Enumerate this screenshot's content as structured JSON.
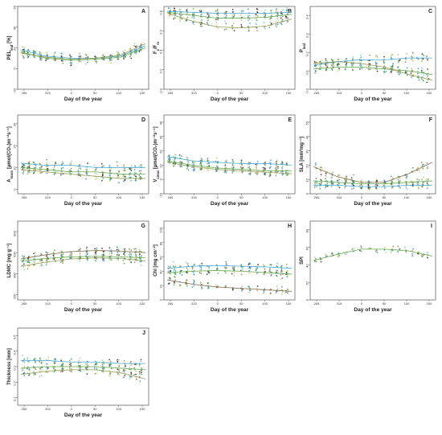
{
  "figure": {
    "shared_xlabel": "Day of the year",
    "colors": {
      "dark_brown": "#3b2414",
      "olive": "#8d8a3c",
      "khaki": "#c8bd78",
      "green": "#49a34b",
      "light_green": "#a8cf6b",
      "teal": "#2f9a90",
      "blue": "#3a86c8",
      "light_blue": "#6fc7e3",
      "fit_blue": "#4da9d8",
      "fit_green": "#6aaa50",
      "fit_olive": "#9a9a5a",
      "fit_brown": "#8b6a4e"
    }
  },
  "chart_data": [
    {
      "id": "A",
      "type": "scatter",
      "letter": "A",
      "ylabel": "PEL",
      "ylabel_sub": "leaf",
      "ylabel_unit": " [%]",
      "xlabel": "Day of the year",
      "xticks": [
        "265",
        "315",
        "0",
        "50",
        "100",
        "150"
      ],
      "yticks": [
        "-20",
        "0",
        "20",
        "40",
        "60"
      ],
      "ylim": [
        -20,
        60
      ],
      "fits": [
        {
          "name": "fit-blue",
          "color": "#4da9d8",
          "y": [
            18,
            12,
            10,
            10,
            12,
            22
          ]
        },
        {
          "name": "fit-green",
          "color": "#6aaa50",
          "y": [
            16,
            10,
            8,
            9,
            11,
            20
          ]
        },
        {
          "name": "fit-olive",
          "color": "#9a9a5a",
          "y": [
            15,
            11,
            9,
            10,
            13,
            24
          ]
        }
      ]
    },
    {
      "id": "B",
      "type": "scatter",
      "letter": "B",
      "ylabel": "F",
      "ylabel_sub": "v",
      "ylabel_tail": "/F",
      "ylabel_sub2": "m",
      "xlabel": "Day of the year",
      "xticks": [
        "265",
        "315",
        "0",
        "50",
        "100",
        "150"
      ],
      "yticks": [
        "0.0",
        "0.2",
        "0.4",
        "0.6",
        "0.8"
      ],
      "ylim": [
        0,
        0.85
      ],
      "fits": [
        {
          "name": "fit-blue",
          "color": "#4da9d8",
          "y": [
            0.8,
            0.79,
            0.78,
            0.78,
            0.78,
            0.79
          ]
        },
        {
          "name": "fit-green",
          "color": "#6aaa50",
          "y": [
            0.79,
            0.76,
            0.73,
            0.73,
            0.74,
            0.77
          ]
        },
        {
          "name": "fit-olive",
          "color": "#9a9a5a",
          "y": [
            0.78,
            0.7,
            0.64,
            0.63,
            0.65,
            0.72
          ]
        }
      ]
    },
    {
      "id": "C",
      "type": "scatter",
      "letter": "C",
      "ylabel": "P",
      "ylabel_sub": "leaf",
      "ylabel_unit": "",
      "xlabel": "Day of the year",
      "xticks": [
        "265",
        "315",
        "0",
        "50",
        "100",
        "150"
      ],
      "yticks": [
        "0.0",
        "0.1",
        "0.2",
        "0.3",
        "0.4"
      ],
      "ylim": [
        0,
        0.45
      ],
      "fits": [
        {
          "name": "fit-blue",
          "color": "#4da9d8",
          "y": [
            0.13,
            0.15,
            0.16,
            0.16,
            0.17,
            0.17
          ]
        },
        {
          "name": "fit-green",
          "color": "#6aaa50",
          "y": [
            0.11,
            0.12,
            0.12,
            0.11,
            0.1,
            0.08
          ]
        },
        {
          "name": "fit-olive",
          "color": "#9a9a5a",
          "y": [
            0.14,
            0.15,
            0.14,
            0.12,
            0.08,
            0.05
          ]
        }
      ]
    },
    {
      "id": "D",
      "type": "scatter",
      "letter": "D",
      "ylabel": "A",
      "ylabel_sub": "mass",
      "ylabel_unit": " [µmol(CO₂)m⁻²s⁻¹]",
      "xlabel": "Day of the year",
      "xticks": [
        "265",
        "315",
        "0",
        "50",
        "100",
        "150"
      ],
      "yticks": [
        "0",
        "10",
        "20",
        "30"
      ],
      "ylim": [
        -2,
        34
      ],
      "fits": [
        {
          "name": "fit-blue",
          "color": "#4da9d8",
          "y": [
            12,
            11,
            11,
            10,
            10,
            10
          ]
        },
        {
          "name": "fit-green",
          "color": "#6aaa50",
          "y": [
            10,
            9,
            8,
            8,
            7,
            7
          ]
        },
        {
          "name": "fit-olive",
          "color": "#9a9a5a",
          "y": [
            9,
            8,
            7,
            6,
            5,
            5
          ]
        }
      ]
    },
    {
      "id": "E",
      "type": "scatter",
      "letter": "E",
      "ylabel": "V",
      "ylabel_sub": "cmax",
      "ylabel_unit": " [µmol(CO₂)m⁻²s⁻¹]",
      "xlabel": "Day of the year",
      "xticks": [
        "265",
        "315",
        "0",
        "50",
        "100",
        "150"
      ],
      "yticks": [
        "-10",
        "0",
        "10",
        "20",
        "30",
        "40"
      ],
      "ylim": [
        -10,
        45
      ],
      "fits": [
        {
          "name": "fit-blue",
          "color": "#4da9d8",
          "y": [
            16,
            13,
            12,
            11,
            11,
            10
          ]
        },
        {
          "name": "fit-green",
          "color": "#6aaa50",
          "y": [
            13,
            10,
            8,
            7,
            6,
            6
          ]
        },
        {
          "name": "fit-olive",
          "color": "#9a9a5a",
          "y": [
            12,
            9,
            7,
            6,
            5,
            4
          ]
        }
      ]
    },
    {
      "id": "F",
      "type": "scatter",
      "letter": "F",
      "ylabel": "SLA [mm²mg⁻¹]",
      "ylabel_sub": "",
      "ylabel_unit": "",
      "xlabel": "Day of the year",
      "xticks": [
        "265",
        "315",
        "0",
        "50",
        "100",
        "150"
      ],
      "yticks": [
        "0",
        "10",
        "20",
        "30",
        "40",
        "50"
      ],
      "ylim": [
        0,
        55
      ],
      "fits": [
        {
          "name": "fit-blue",
          "color": "#4da9d8",
          "y": [
            6,
            6,
            5,
            5,
            6,
            6
          ]
        },
        {
          "name": "fit-green",
          "color": "#6aaa50",
          "y": [
            9,
            8,
            7,
            7,
            8,
            9
          ]
        },
        {
          "name": "fit-brown",
          "color": "#8b6a4e",
          "y": [
            19,
            12,
            8,
            8,
            14,
            22
          ]
        }
      ]
    },
    {
      "id": "G",
      "type": "scatter",
      "letter": "G",
      "ylabel": "LDMC [mg g⁻¹]",
      "ylabel_sub": "",
      "ylabel_unit": "",
      "xlabel": "Day of the year",
      "xticks": [
        "265",
        "315",
        "0",
        "50",
        "100",
        "150"
      ],
      "yticks": [
        "200",
        "400",
        "600",
        "800"
      ],
      "ylim": [
        150,
        900
      ],
      "fits": [
        {
          "name": "fit-brown",
          "color": "#8b6a4e",
          "y": [
            540,
            580,
            610,
            620,
            615,
            600
          ]
        },
        {
          "name": "fit-green",
          "color": "#6aaa50",
          "y": [
            520,
            545,
            560,
            565,
            560,
            550
          ]
        },
        {
          "name": "fit-olive",
          "color": "#9a9a5a",
          "y": [
            470,
            510,
            540,
            550,
            545,
            520
          ]
        }
      ]
    },
    {
      "id": "H",
      "type": "scatter",
      "letter": "H",
      "ylabel": "Chl [mg cm⁻²]",
      "ylabel_sub": "",
      "ylabel_unit": "",
      "xlabel": "Day of the year",
      "xticks": [
        "265",
        "315",
        "0",
        "50",
        "100",
        "150"
      ],
      "yticks": [
        "0",
        "20",
        "40",
        "60",
        "80",
        "100"
      ],
      "ylim": [
        0,
        110
      ],
      "fits": [
        {
          "name": "fit-blue",
          "color": "#4da9d8",
          "y": [
            44,
            47,
            48,
            47,
            46,
            44
          ]
        },
        {
          "name": "fit-green",
          "color": "#6aaa50",
          "y": [
            38,
            40,
            41,
            40,
            38,
            36
          ]
        },
        {
          "name": "fit-brown",
          "color": "#8b6a4e",
          "y": [
            28,
            22,
            18,
            16,
            14,
            12
          ]
        }
      ]
    },
    {
      "id": "I",
      "type": "scatter",
      "letter": "I",
      "ylabel": "SPI",
      "ylabel_sub": "",
      "ylabel_unit": "",
      "xlabel": "Day of the year",
      "xticks": [
        "265",
        "315",
        "0",
        "50",
        "100",
        "150"
      ],
      "yticks": [
        "0",
        "20",
        "40",
        "60",
        "80"
      ],
      "ylim": [
        0,
        90
      ],
      "fits": [
        {
          "name": "fit-green",
          "color": "#6aaa50",
          "y": [
            45,
            52,
            58,
            58,
            56,
            50
          ]
        }
      ]
    },
    {
      "id": "J",
      "type": "scatter",
      "letter": "J",
      "ylabel": "Thickness [mm]",
      "ylabel_sub": "",
      "ylabel_unit": "",
      "xlabel": "Day of the year",
      "xticks": [
        "265",
        "315",
        "0",
        "50",
        "100",
        "150"
      ],
      "yticks": [
        "0.1",
        "0.2",
        "0.3",
        "0.4",
        "0.5"
      ],
      "ylim": [
        0.05,
        0.55
      ],
      "fits": [
        {
          "name": "fit-blue",
          "color": "#4da9d8",
          "y": [
            0.34,
            0.34,
            0.33,
            0.33,
            0.32,
            0.32
          ]
        },
        {
          "name": "fit-green",
          "color": "#6aaa50",
          "y": [
            0.29,
            0.3,
            0.3,
            0.3,
            0.29,
            0.28
          ]
        },
        {
          "name": "fit-olive",
          "color": "#9a9a5a",
          "y": [
            0.25,
            0.27,
            0.28,
            0.28,
            0.26,
            0.22
          ]
        }
      ]
    }
  ]
}
